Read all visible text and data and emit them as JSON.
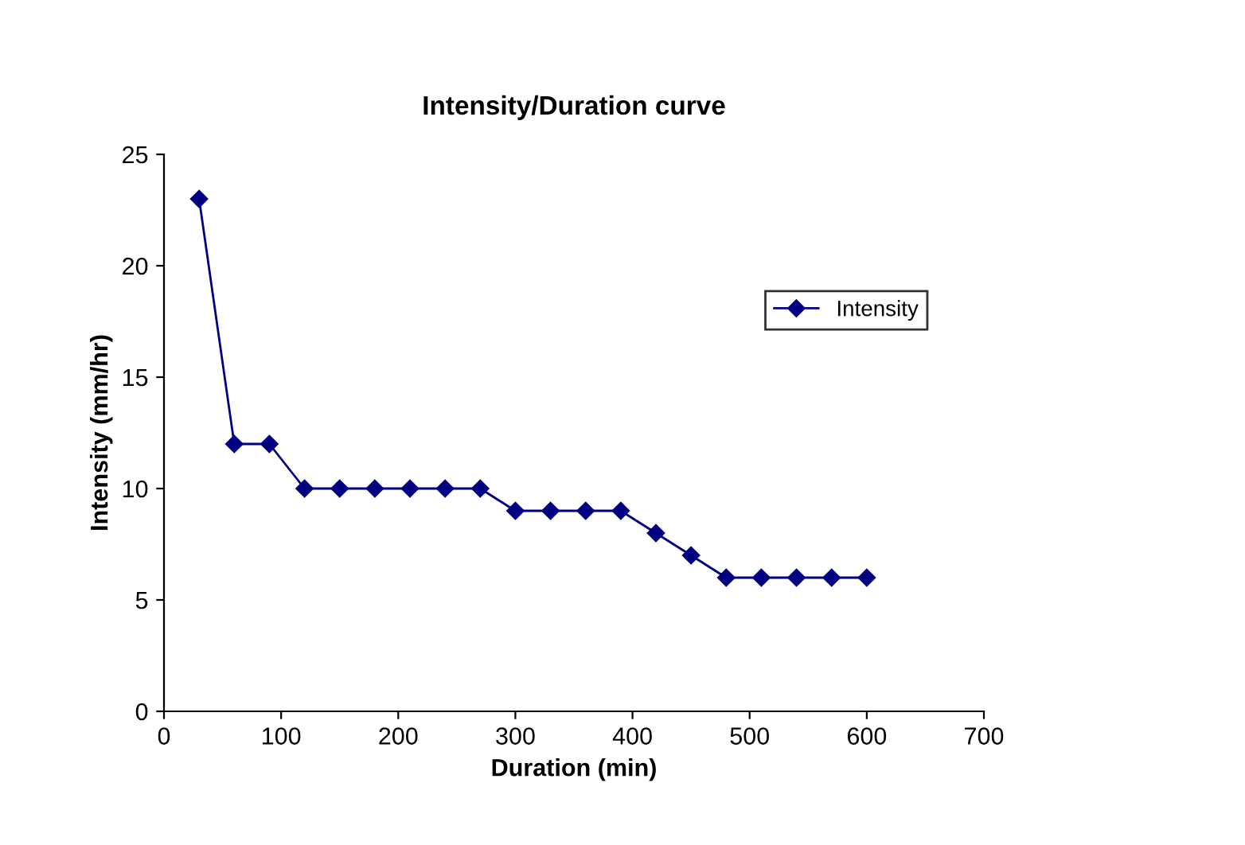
{
  "chart_data": {
    "type": "line",
    "title": "Intensity/Duration curve",
    "xlabel": "Duration (min)",
    "ylabel": "Intensity (mm/hr)",
    "x": [
      30,
      60,
      90,
      120,
      150,
      180,
      210,
      240,
      270,
      300,
      330,
      360,
      390,
      420,
      450,
      480,
      510,
      540,
      570,
      600
    ],
    "series": [
      {
        "name": "Intensity",
        "color": "#000080",
        "values": [
          23,
          12,
          12,
          10,
          10,
          10,
          10,
          10,
          10,
          9,
          9,
          9,
          9,
          8,
          7,
          6,
          6,
          6,
          6,
          6
        ]
      }
    ],
    "xlim": [
      0,
      700
    ],
    "xticks": [
      0,
      100,
      200,
      300,
      400,
      500,
      600,
      700
    ],
    "ylim": [
      0,
      25
    ],
    "yticks": [
      0,
      5,
      10,
      15,
      20,
      25
    ],
    "grid": false,
    "legend": "right",
    "marker": "diamond",
    "line_style": "solid"
  }
}
